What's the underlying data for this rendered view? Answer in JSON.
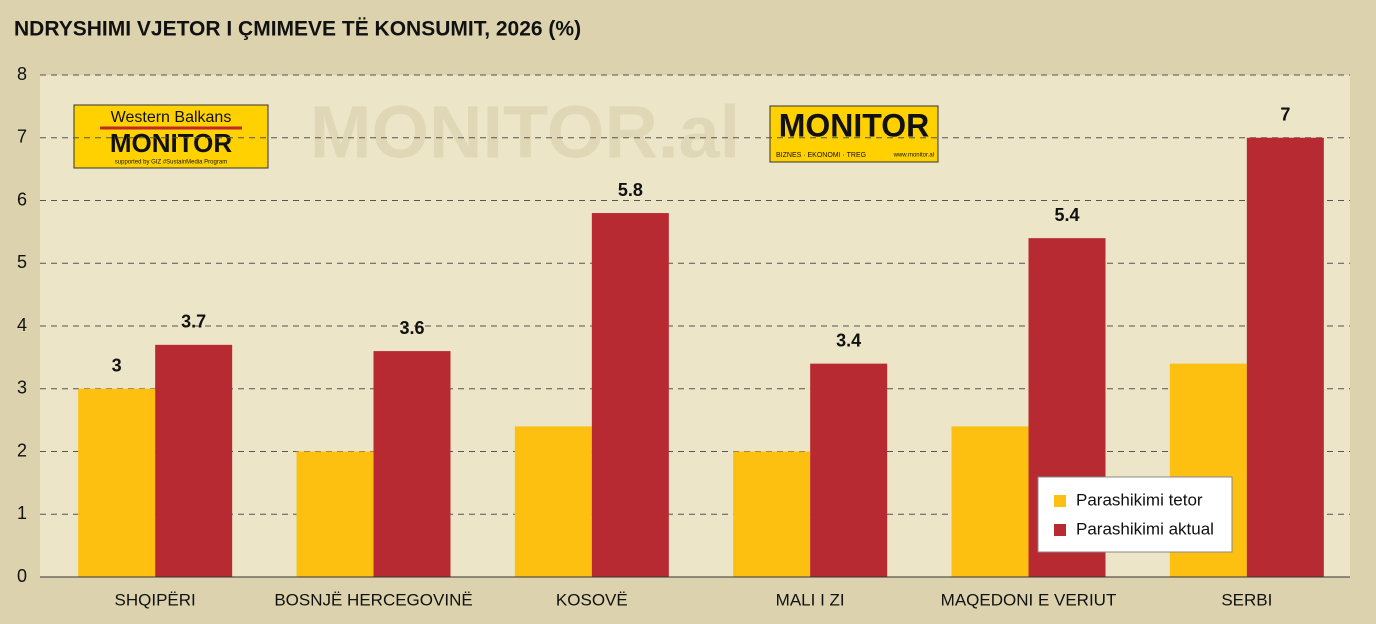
{
  "chart_data": {
    "type": "bar",
    "title": "NDRYSHIMI VJETOR I ÇMIMEVE TË KONSUMIT, 2026 (%)",
    "categories": [
      "SHQIPËRI",
      "BOSNJË HERCEGOVINË",
      "KOSOVË",
      "MALI I ZI",
      "MAQEDONI E VERIUT",
      "SERBI"
    ],
    "series": [
      {
        "name": "Parashikimi tetor",
        "color": "#fdc010",
        "values": [
          3,
          2,
          2.4,
          2,
          2.4,
          3.4
        ],
        "value_labels": [
          "3",
          null,
          null,
          null,
          null,
          null
        ]
      },
      {
        "name": "Parashikimi aktual",
        "color": "#b72a31",
        "values": [
          3.7,
          3.6,
          5.8,
          3.4,
          5.4,
          7
        ]
      }
    ],
    "ylim": [
      0,
      8
    ],
    "yticks": [
      0,
      1,
      2,
      3,
      4,
      5,
      6,
      7,
      8
    ],
    "grid": true,
    "legend": "lower right"
  },
  "watermark": "MONITOR.al",
  "logos": [
    {
      "top": "Western Balkans",
      "name": "MONITOR",
      "bottom": "supported by GIZ #SustainMedia Program"
    },
    {
      "name": "MONITOR",
      "bottom": "BIZNES · EKONOMI · TREG",
      "site": "www.monitor.al"
    }
  ]
}
